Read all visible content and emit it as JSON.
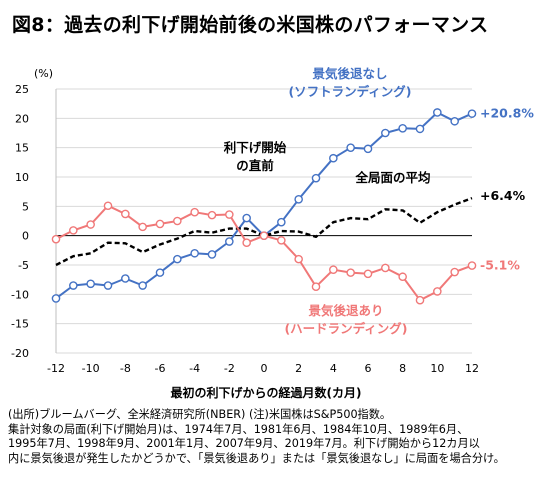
{
  "title": "図8：過去の利下げ開始前後の米国株のパフォーマンス",
  "notes": [
    "(出所)ブルームバーグ、全米経済研究所(NBER) (注)米国株はS&P500指数。",
    "集計対象の局面(利下げ開始月)は、1974年7月、1981年6月、1984年10月、1989年6月、",
    "1995年7月、1998年9月、2001年1月、2007年9月、2019年7月。利下げ開始から12カ月以",
    "内に景気後退が発生したかどうかで、「景気後退あり」または「景気後退なし」に局面を場合分け。"
  ],
  "chart_data": {
    "type": "line",
    "ylabel": "(%)",
    "xlabel": "最初の利下げからの経過月数(カ月)",
    "xlim": [
      -12,
      12
    ],
    "ylim": [
      -20,
      25
    ],
    "x_ticks": [
      -12,
      -10,
      -8,
      -6,
      -4,
      -2,
      0,
      2,
      4,
      6,
      8,
      10,
      12
    ],
    "y_ticks": [
      25,
      20,
      15,
      10,
      5,
      0,
      -5,
      -10,
      -15,
      -20
    ],
    "x": [
      -12,
      -11,
      -10,
      -9,
      -8,
      -7,
      -6,
      -5,
      -4,
      -3,
      -2,
      -1,
      0,
      1,
      2,
      3,
      4,
      5,
      6,
      7,
      8,
      9,
      10,
      11,
      12
    ],
    "series": [
      {
        "name": "景気後退なし (ソフトランディング)",
        "label_lines": [
          "景気後退なし",
          "(ソフトランディング)"
        ],
        "end_label": "+20.8%",
        "color": "#4472c4",
        "style": "solid-marker",
        "values": [
          -10.7,
          -8.5,
          -8.2,
          -8.5,
          -7.3,
          -8.5,
          -6.3,
          -4.0,
          -3.0,
          -3.2,
          -1.0,
          3.0,
          0.0,
          2.3,
          6.2,
          9.8,
          13.2,
          15.0,
          14.8,
          17.5,
          18.3,
          18.2,
          21.0,
          19.5,
          20.8
        ]
      },
      {
        "name": "全局面の平均",
        "label_lines": [
          "全局面の平均"
        ],
        "end_label": "+6.4%",
        "color": "#000000",
        "style": "dashed",
        "values": [
          -5.0,
          -3.5,
          -3.0,
          -1.2,
          -1.3,
          -2.8,
          -1.5,
          -0.5,
          0.8,
          0.5,
          1.2,
          1.2,
          0.0,
          0.8,
          0.7,
          -0.2,
          2.3,
          3.0,
          2.8,
          4.5,
          4.3,
          2.2,
          4.0,
          5.3,
          6.4
        ]
      },
      {
        "name": "景気後退あり (ハードランディング)",
        "label_lines": [
          "景気後退あり",
          "(ハードランディング)"
        ],
        "end_label": "-5.1%",
        "color": "#f07878",
        "style": "solid-marker",
        "values": [
          -0.6,
          0.9,
          1.9,
          5.1,
          3.7,
          1.5,
          2.0,
          2.5,
          4.0,
          3.5,
          3.6,
          -1.2,
          0.0,
          -0.8,
          -4.0,
          -8.7,
          -5.8,
          -6.3,
          -6.5,
          -5.5,
          -7.0,
          -11.0,
          -9.5,
          -6.2,
          -5.1
        ]
      }
    ],
    "annotation": [
      "利下げ開始",
      "の直前"
    ],
    "grid": true
  }
}
